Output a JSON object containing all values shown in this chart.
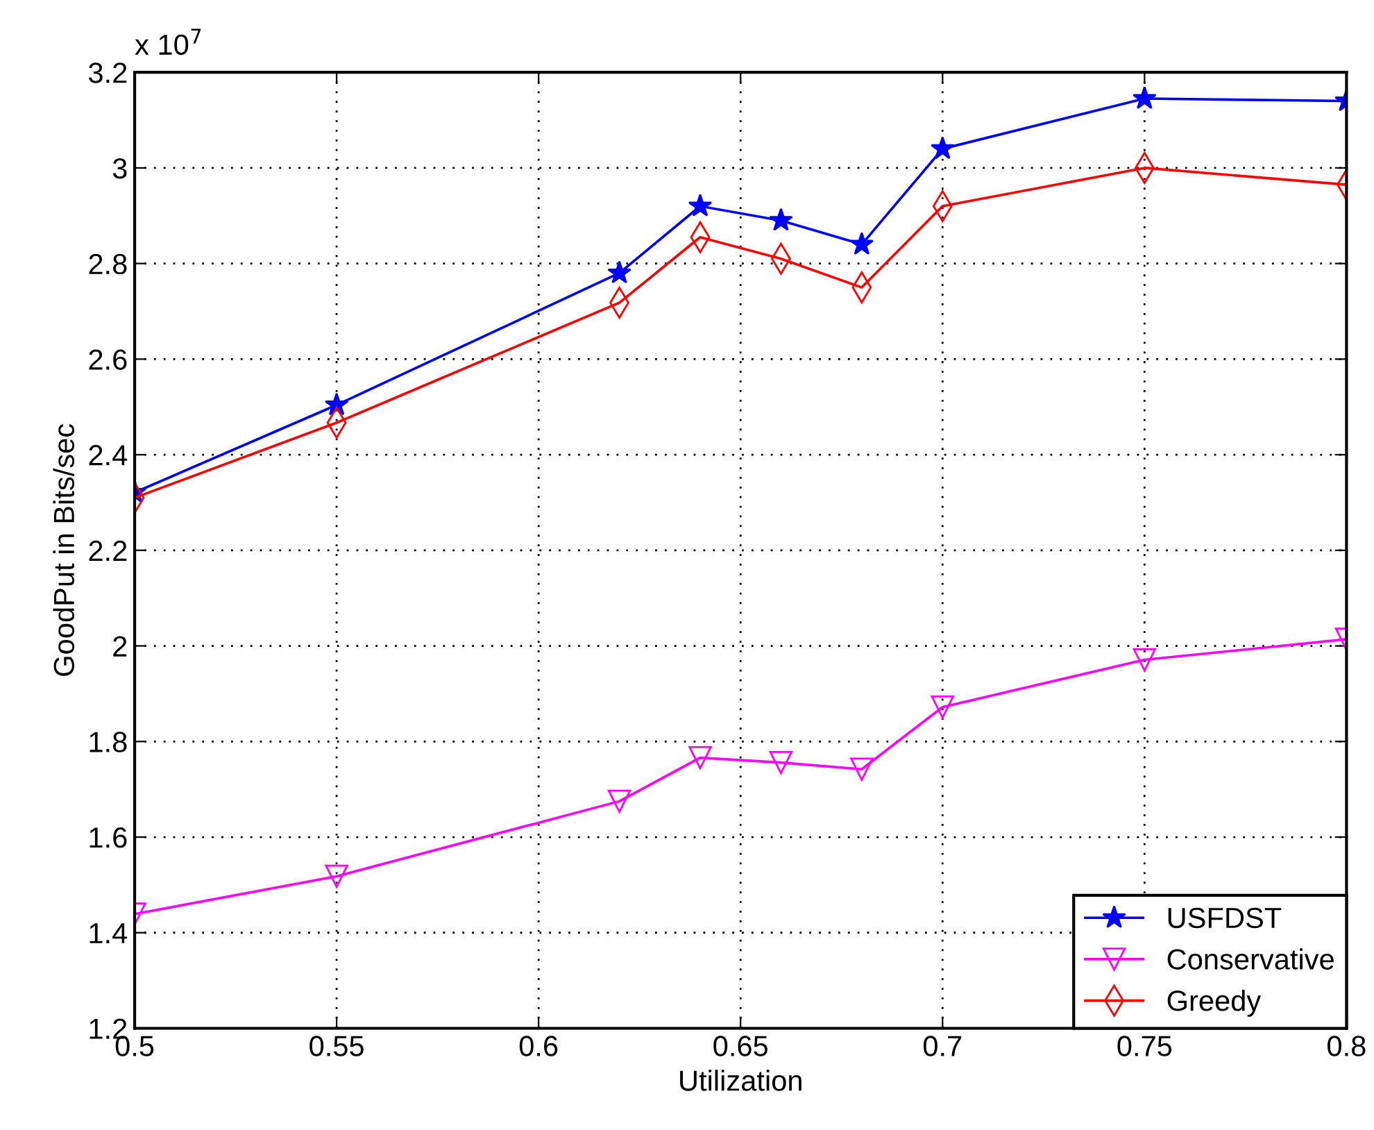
{
  "chart_data": {
    "type": "line",
    "xlabel": "Utilization",
    "ylabel": "GoodPut in Bits/sec",
    "annotations": [
      "x 10$^{7}$"
    ],
    "x": [
      0.5,
      0.55,
      0.62,
      0.64,
      0.66,
      0.68,
      0.7,
      0.75,
      0.8
    ],
    "series": [
      {
        "name": "USFDST",
        "color": "#0000ff",
        "marker": "star",
        "values": [
          2.321,
          2.504,
          2.78,
          2.92,
          2.89,
          2.84,
          3.04,
          3.145,
          3.14
        ]
      },
      {
        "name": "Conservative",
        "color": "#ff00ff",
        "marker": "triangle",
        "values": [
          1.439,
          1.518,
          1.675,
          1.766,
          1.756,
          1.742,
          1.872,
          1.971,
          2.014
        ]
      },
      {
        "name": "Greedy",
        "color": "#ff0000",
        "marker": "diamond",
        "values": [
          2.31,
          2.467,
          2.718,
          2.855,
          2.81,
          2.75,
          2.92,
          3.0,
          2.965
        ]
      }
    ],
    "xlim": [
      0.5,
      0.8
    ],
    "xticks": [
      0.5,
      0.55,
      0.6,
      0.65,
      0.7,
      0.75,
      0.8
    ],
    "ylim": [
      1.2,
      3.2
    ],
    "yticks": [
      1.2,
      1.4,
      1.6,
      1.8,
      2,
      2.2,
      2.4,
      2.6,
      2.8,
      3,
      3.2
    ],
    "grid": true,
    "legend": "bottom right",
    "line_style": "solid"
  }
}
